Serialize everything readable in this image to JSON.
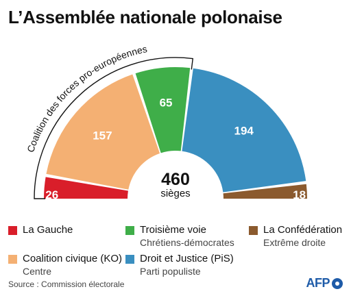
{
  "title": "L’Assemblée nationale polonaise",
  "chart_data": {
    "type": "pie",
    "subtype": "parliament-half-donut",
    "total": 460,
    "total_label": "sièges",
    "bracket_label": "Coalition des forces pro-européennes",
    "series": [
      {
        "name": "La Gauche",
        "value": 26,
        "color": "#d91e2a",
        "group": "pro"
      },
      {
        "name": "Coalition civique (KO)",
        "value": 157,
        "color": "#f4b073",
        "group": "pro"
      },
      {
        "name": "Troisième voie",
        "value": 65,
        "color": "#3fae49",
        "group": "pro"
      },
      {
        "name": "Droit et Justice (PiS)",
        "value": 194,
        "color": "#3a8fc0",
        "group": "other"
      },
      {
        "name": "La Confédération",
        "value": 18,
        "color": "#8b5a2e",
        "group": "other"
      }
    ]
  },
  "legend": [
    {
      "name": "La Gauche",
      "sub": "",
      "color": "#d91e2a"
    },
    {
      "name": "Troisième voie",
      "sub": "Chrétiens-démocrates",
      "color": "#3fae49"
    },
    {
      "name": "La Confédération",
      "sub": "Extrême droite",
      "color": "#8b5a2e"
    },
    {
      "name": "Coalition civique (KO)",
      "sub": "Centre",
      "color": "#f4b073"
    },
    {
      "name": "Droit et Justice (PiS)",
      "sub": "Parti populiste",
      "color": "#3a8fc0"
    }
  ],
  "source": "Source : Commission électorale",
  "logo": "AFP"
}
